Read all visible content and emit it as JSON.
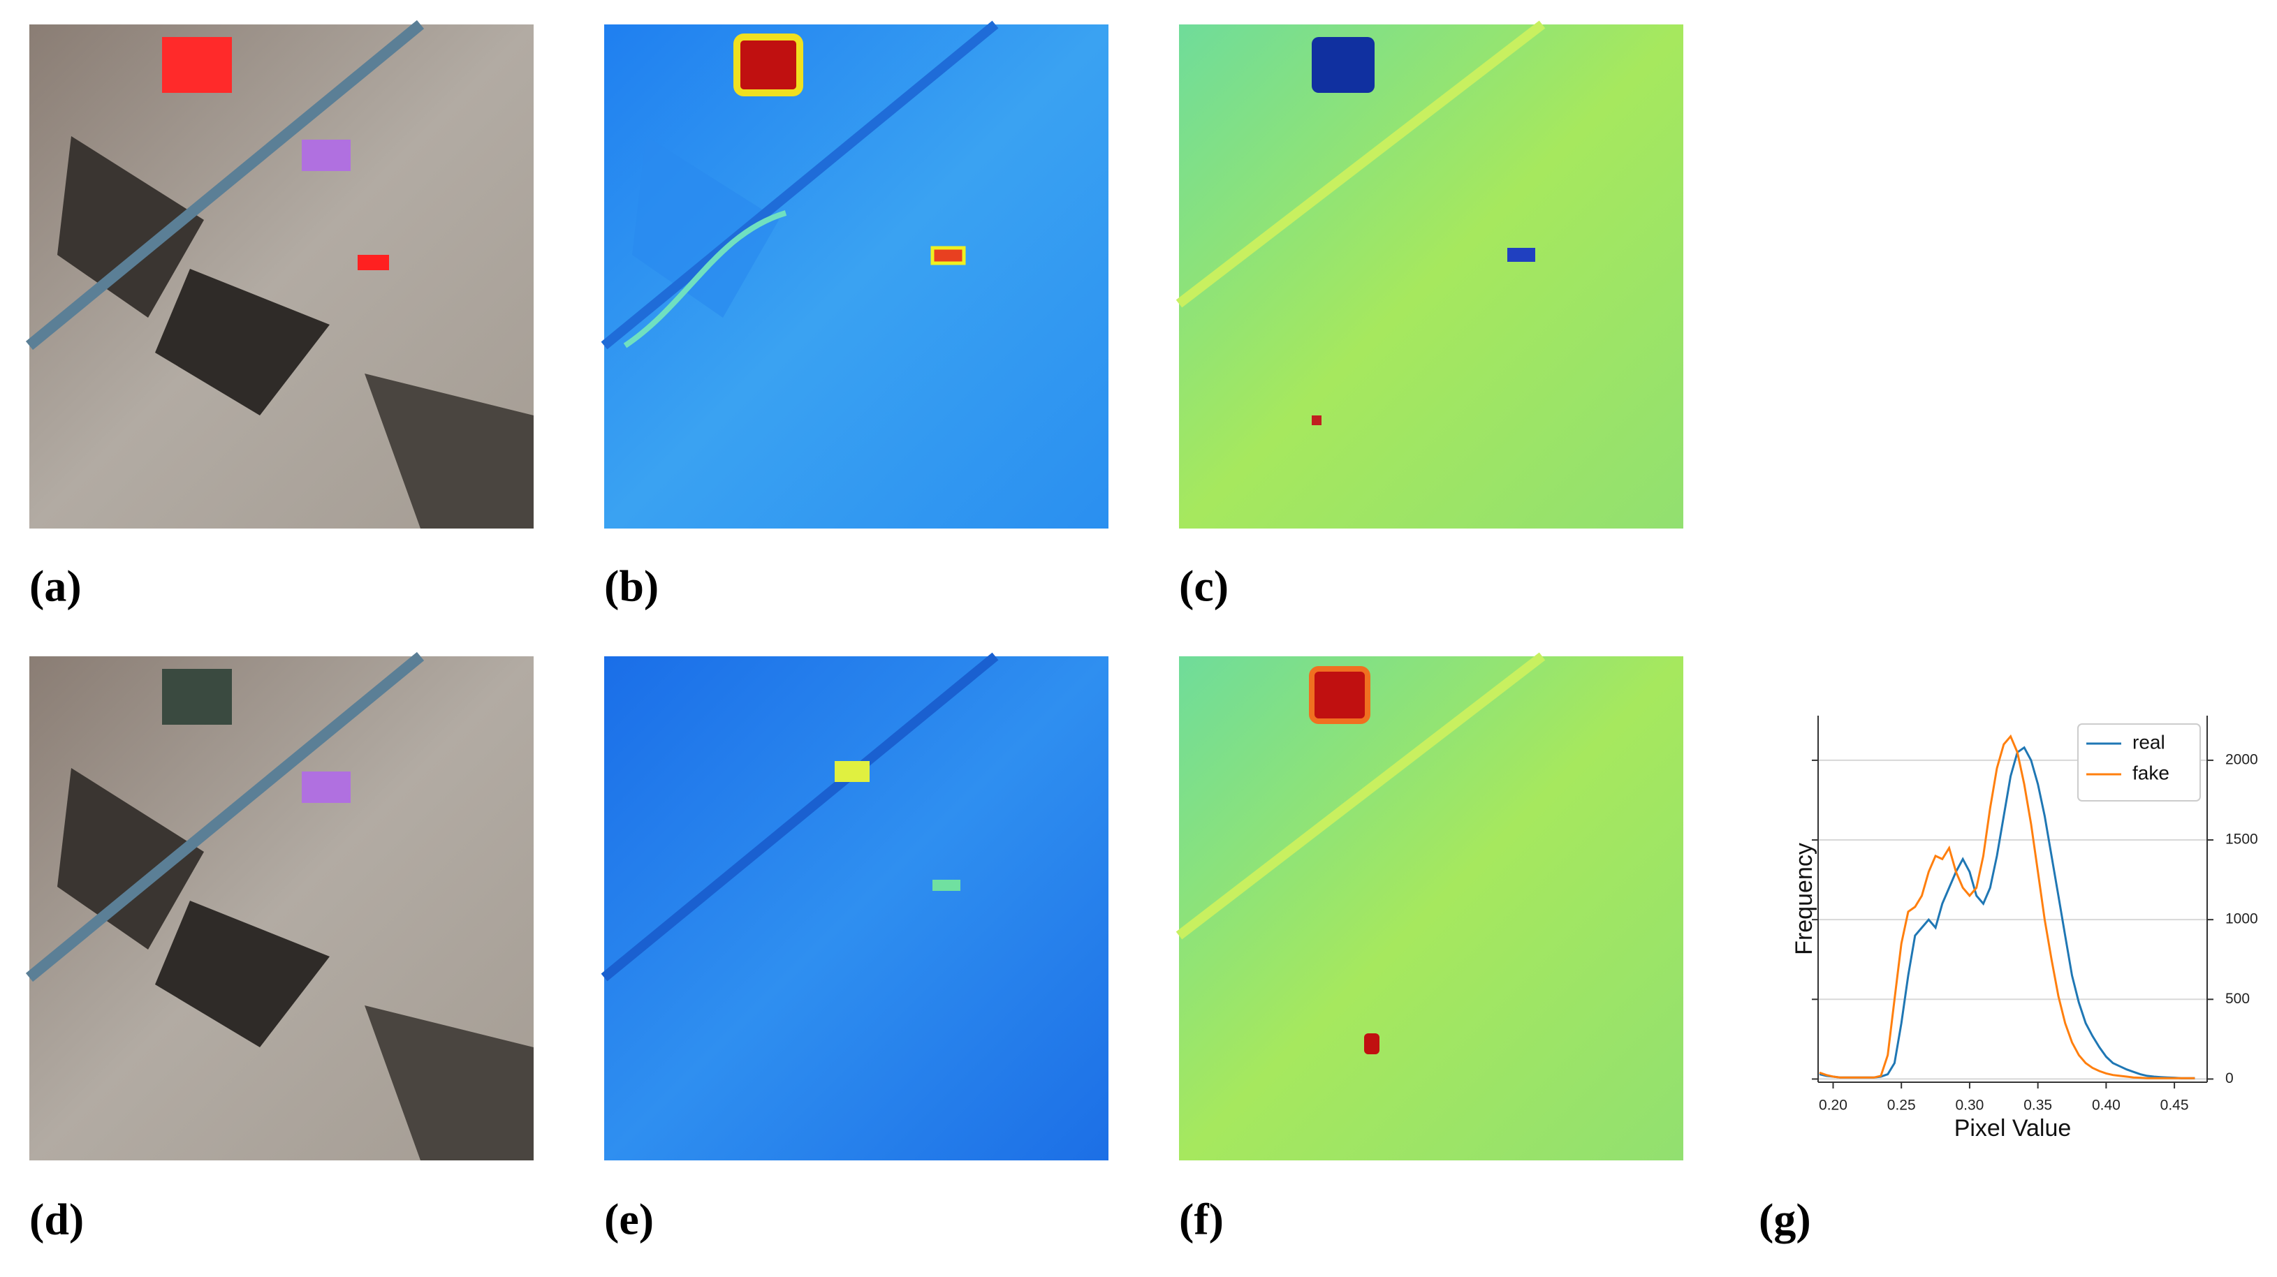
{
  "panels": [
    "(a)",
    "(b)",
    "(c)",
    "(d)",
    "(e)",
    "(f)",
    "(g)"
  ],
  "chart_data": {
    "type": "line",
    "x_label": "Pixel Value",
    "y_label": "Frequency",
    "x": [
      0.19,
      0.195,
      0.2,
      0.205,
      0.21,
      0.215,
      0.22,
      0.225,
      0.23,
      0.235,
      0.24,
      0.245,
      0.25,
      0.255,
      0.26,
      0.265,
      0.27,
      0.275,
      0.28,
      0.285,
      0.29,
      0.295,
      0.3,
      0.305,
      0.31,
      0.315,
      0.32,
      0.325,
      0.33,
      0.335,
      0.34,
      0.345,
      0.35,
      0.355,
      0.36,
      0.365,
      0.37,
      0.375,
      0.38,
      0.385,
      0.39,
      0.395,
      0.4,
      0.405,
      0.41,
      0.415,
      0.42,
      0.425,
      0.43,
      0.435,
      0.44,
      0.445,
      0.45,
      0.455,
      0.46,
      0.465
    ],
    "series": [
      {
        "name": "real",
        "color": "#1f77b4",
        "values": [
          30,
          20,
          15,
          10,
          10,
          10,
          10,
          10,
          10,
          15,
          30,
          100,
          350,
          650,
          900,
          950,
          1000,
          950,
          1100,
          1200,
          1300,
          1380,
          1300,
          1150,
          1100,
          1200,
          1400,
          1650,
          1900,
          2050,
          2080,
          2000,
          1850,
          1650,
          1400,
          1150,
          900,
          650,
          480,
          350,
          270,
          200,
          140,
          100,
          80,
          60,
          45,
          30,
          20,
          15,
          12,
          10,
          8,
          5,
          5,
          5
        ]
      },
      {
        "name": "fake",
        "color": "#ff7f0e",
        "values": [
          40,
          25,
          15,
          10,
          10,
          10,
          10,
          10,
          10,
          20,
          150,
          500,
          850,
          1050,
          1080,
          1150,
          1300,
          1400,
          1380,
          1450,
          1300,
          1200,
          1150,
          1200,
          1400,
          1700,
          1950,
          2100,
          2150,
          2050,
          1850,
          1600,
          1300,
          1000,
          750,
          520,
          350,
          230,
          150,
          100,
          70,
          50,
          35,
          25,
          20,
          15,
          10,
          8,
          5,
          5,
          5,
          5,
          5,
          5,
          5,
          5
        ]
      }
    ],
    "xlim": [
      0.189,
      0.474
    ],
    "xticks": [
      {
        "value": 0.2,
        "label": "0.20"
      },
      {
        "value": 0.25,
        "label": "0.25"
      },
      {
        "value": 0.3,
        "label": "0.30"
      },
      {
        "value": 0.35,
        "label": "0.35"
      },
      {
        "value": 0.4,
        "label": "0.40"
      },
      {
        "value": 0.45,
        "label": "0.45"
      }
    ],
    "ylim": [
      -20,
      2280
    ],
    "yticks": [
      0,
      500,
      1000,
      1500,
      2000
    ],
    "grid": true,
    "legend": "upper right"
  }
}
